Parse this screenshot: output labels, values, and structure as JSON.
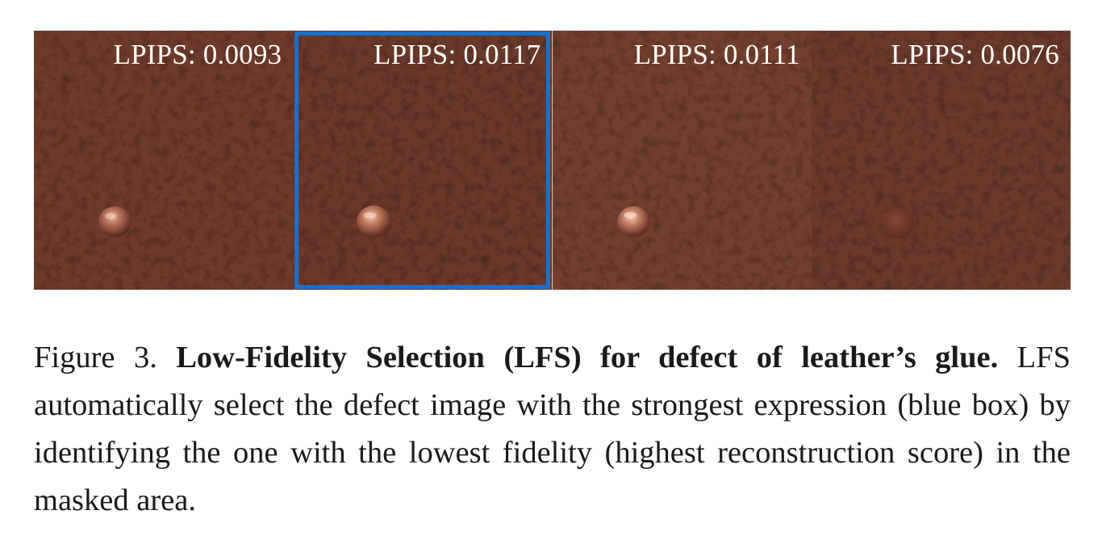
{
  "figure": {
    "panels": [
      {
        "label": "LPIPS: 0.0093",
        "selected": false,
        "tone": "#6f3b2c"
      },
      {
        "label": "LPIPS: 0.0117",
        "selected": true,
        "tone": "#6a392b"
      },
      {
        "label": "LPIPS: 0.0111",
        "selected": false,
        "tone": "#73402f"
      },
      {
        "label": "LPIPS: 0.0076",
        "selected": false,
        "tone": "#6b3a2c"
      }
    ],
    "selection_color": "#1f6fc4"
  },
  "caption": {
    "prefix": "Figure 3. ",
    "title": "Low-Fidelity Selection (LFS) for defect of leather’s glue.",
    "body": " LFS automatically select the defect image with the strongest expression (blue box) by identifying the one with the lowest fidelity (highest reconstruction score) in the masked area."
  }
}
